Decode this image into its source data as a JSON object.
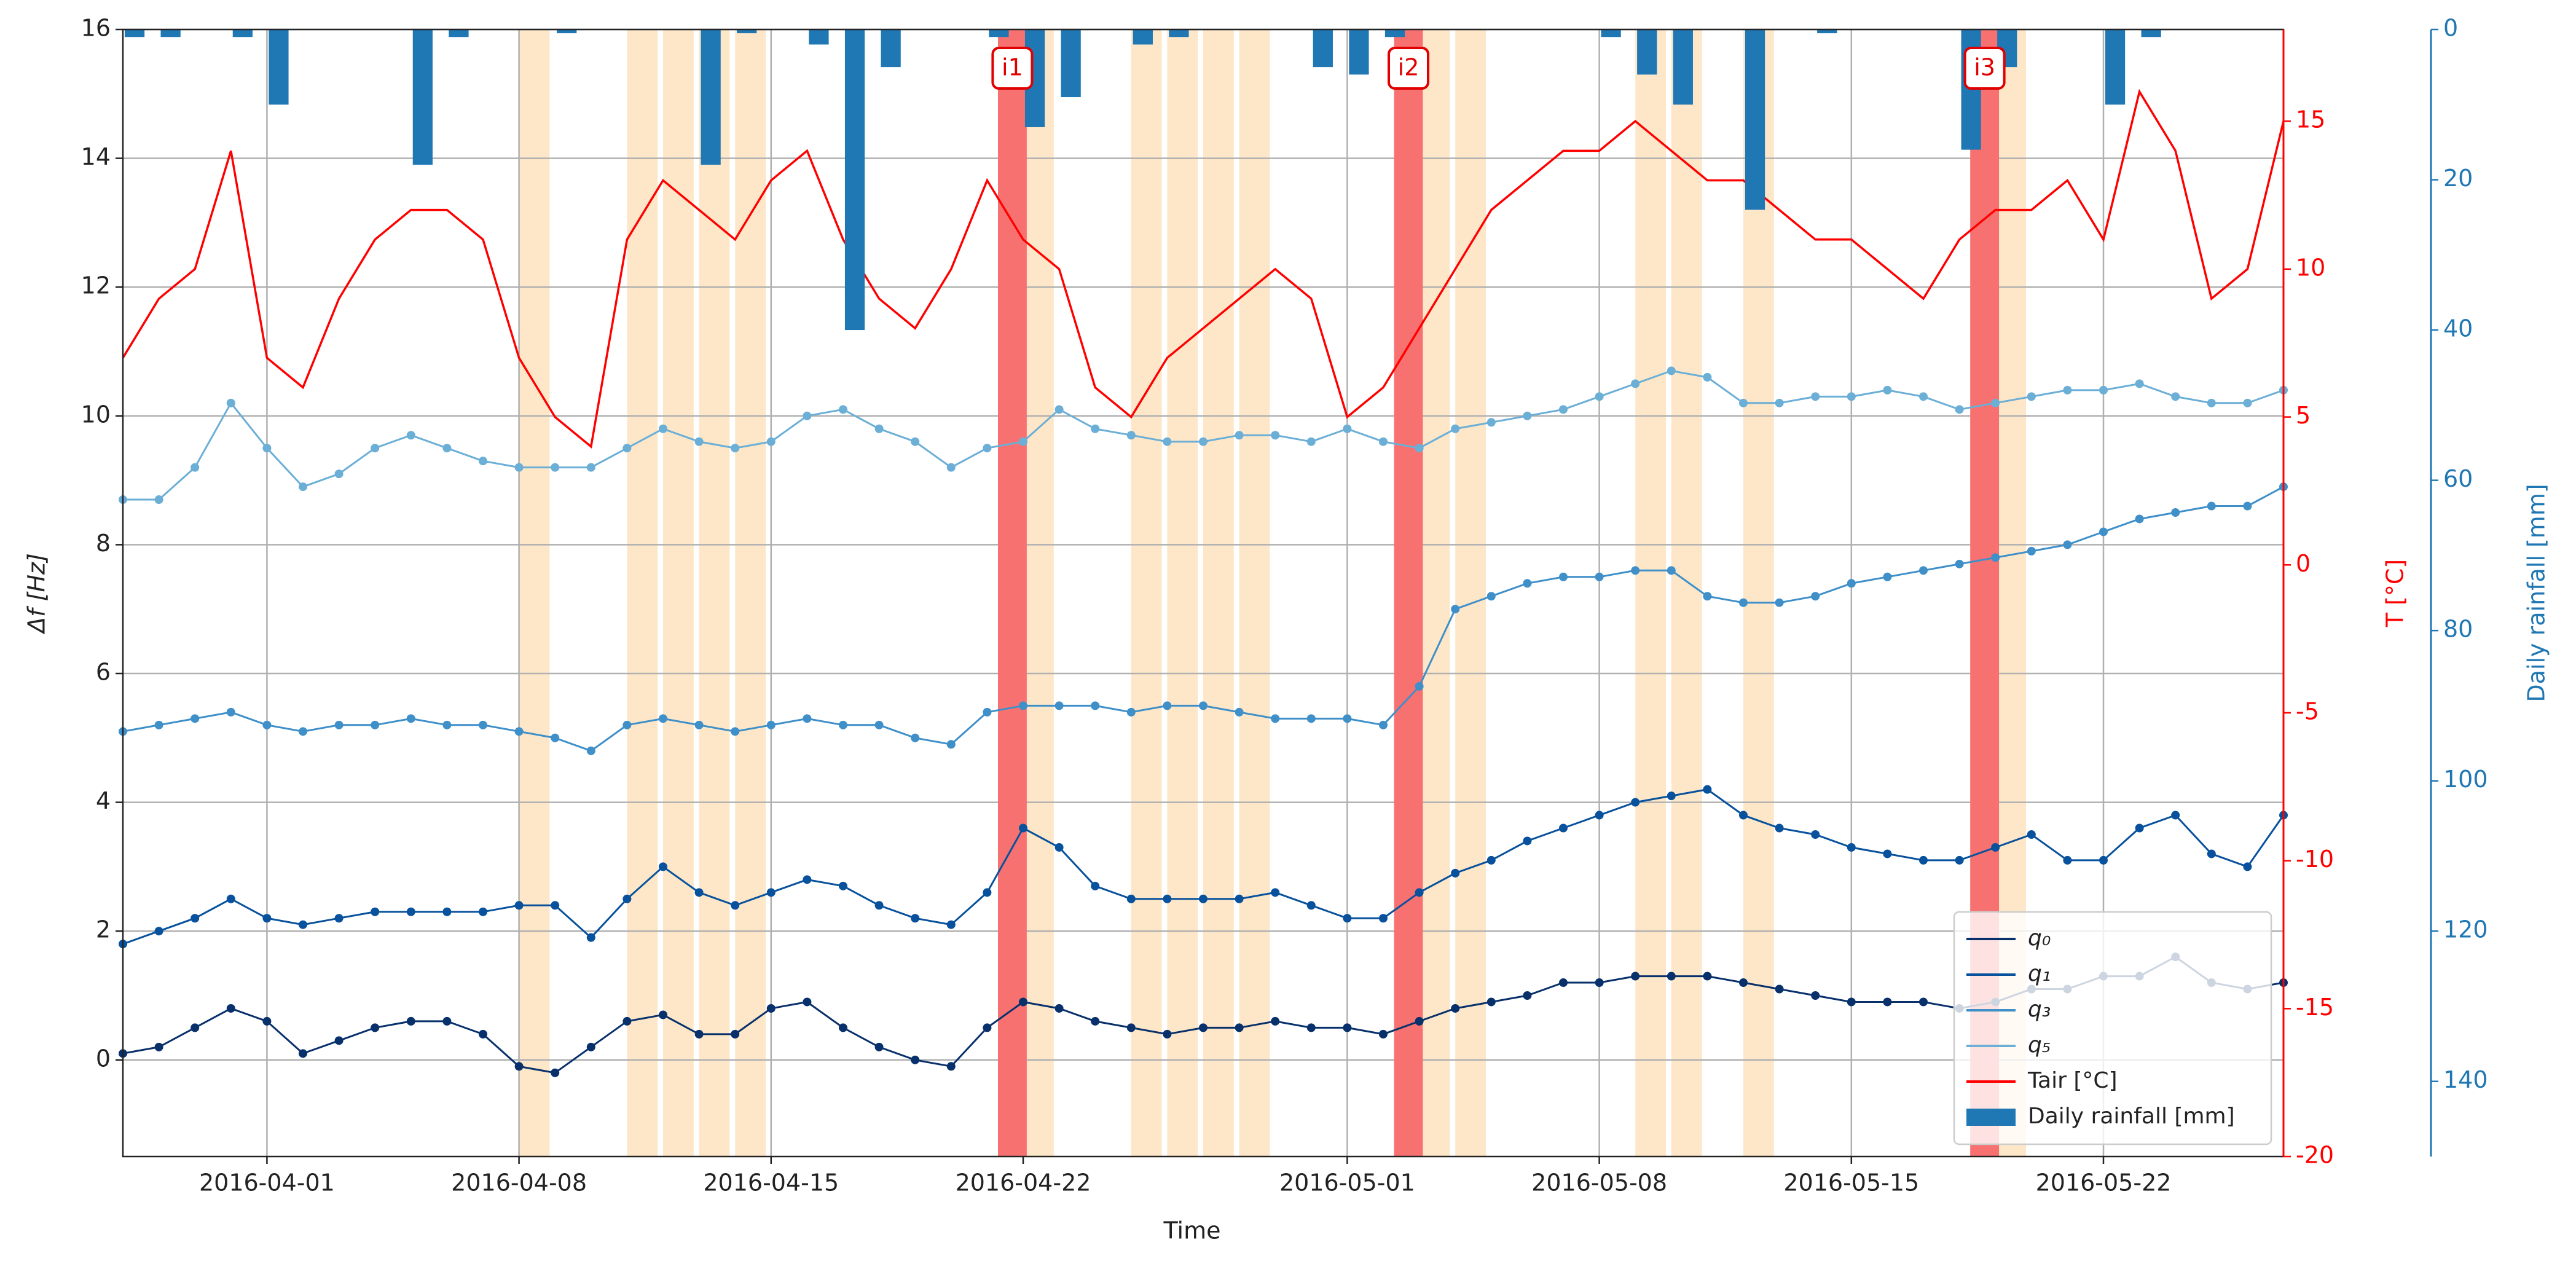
{
  "chart_data": {
    "type": "line",
    "xlabel": "Time",
    "ylabel": "Δf [Hz]",
    "y2label": "T [°C]",
    "y3label": "Daily rainfall [mm]",
    "x": [
      "2016-03-28",
      "2016-03-29",
      "2016-03-30",
      "2016-03-31",
      "2016-04-01",
      "2016-04-02",
      "2016-04-03",
      "2016-04-04",
      "2016-04-05",
      "2016-04-06",
      "2016-04-07",
      "2016-04-08",
      "2016-04-09",
      "2016-04-10",
      "2016-04-11",
      "2016-04-12",
      "2016-04-13",
      "2016-04-14",
      "2016-04-15",
      "2016-04-16",
      "2016-04-17",
      "2016-04-18",
      "2016-04-19",
      "2016-04-20",
      "2016-04-21",
      "2016-04-22",
      "2016-04-23",
      "2016-04-24",
      "2016-04-25",
      "2016-04-26",
      "2016-04-27",
      "2016-04-28",
      "2016-04-29",
      "2016-04-30",
      "2016-05-01",
      "2016-05-02",
      "2016-05-03",
      "2016-05-04",
      "2016-05-05",
      "2016-05-06",
      "2016-05-07",
      "2016-05-08",
      "2016-05-09",
      "2016-05-10",
      "2016-05-11",
      "2016-05-12",
      "2016-05-13",
      "2016-05-14",
      "2016-05-15",
      "2016-05-16",
      "2016-05-17",
      "2016-05-18",
      "2016-05-19",
      "2016-05-20",
      "2016-05-21",
      "2016-05-22",
      "2016-05-23",
      "2016-05-24",
      "2016-05-25",
      "2016-05-26",
      "2016-05-27"
    ],
    "xlim": [
      "2016-03-28",
      "2016-05-27"
    ],
    "xticks": [
      "2016-04-01",
      "2016-04-08",
      "2016-04-15",
      "2016-04-22",
      "2016-05-01",
      "2016-05-08",
      "2016-05-15",
      "2016-05-22"
    ],
    "ylim": [
      -1.5,
      16
    ],
    "yticks": [
      0,
      2,
      4,
      6,
      8,
      10,
      12,
      14,
      16
    ],
    "y2lim": [
      -20,
      18.1
    ],
    "y2ticks": [
      -20,
      -15,
      -10,
      -5,
      0,
      5,
      10,
      15
    ],
    "y3lim": [
      0,
      150
    ],
    "y3ticks": [
      0,
      20,
      40,
      60,
      80,
      100,
      120,
      140
    ],
    "y3_inverted": true,
    "grid": true,
    "legend": "lower right",
    "series": [
      {
        "name": "q₀",
        "color": "#08306b",
        "values": [
          0.1,
          0.2,
          0.5,
          0.8,
          0.6,
          0.1,
          0.3,
          0.5,
          0.6,
          0.6,
          0.4,
          -0.1,
          -0.2,
          0.2,
          0.6,
          0.7,
          0.4,
          0.4,
          0.8,
          0.9,
          0.5,
          0.2,
          0.0,
          -0.1,
          0.5,
          0.9,
          0.8,
          0.6,
          0.5,
          0.4,
          0.5,
          0.5,
          0.6,
          0.5,
          0.5,
          0.4,
          0.6,
          0.8,
          0.9,
          1.0,
          1.2,
          1.2,
          1.3,
          1.3,
          1.3,
          1.2,
          1.1,
          1.0,
          0.9,
          0.9,
          0.9,
          0.8,
          0.9,
          1.1,
          1.1,
          1.3,
          1.3,
          1.6,
          1.2,
          1.1,
          1.2
        ]
      },
      {
        "name": "q₁",
        "color": "#08519c",
        "values": [
          1.8,
          2.0,
          2.2,
          2.5,
          2.2,
          2.1,
          2.2,
          2.3,
          2.3,
          2.3,
          2.3,
          2.4,
          2.4,
          1.9,
          2.5,
          3.0,
          2.6,
          2.4,
          2.6,
          2.8,
          2.7,
          2.4,
          2.2,
          2.1,
          2.6,
          3.6,
          3.3,
          2.7,
          2.5,
          2.5,
          2.5,
          2.5,
          2.6,
          2.4,
          2.2,
          2.2,
          2.6,
          2.9,
          3.1,
          3.4,
          3.6,
          3.8,
          4.0,
          4.1,
          4.2,
          3.8,
          3.6,
          3.5,
          3.3,
          3.2,
          3.1,
          3.1,
          3.3,
          3.5,
          3.1,
          3.1,
          3.6,
          3.8,
          3.2,
          3.0,
          3.8
        ]
      },
      {
        "name": "q₃",
        "color": "#3f8fc9",
        "values": [
          5.1,
          5.2,
          5.3,
          5.4,
          5.2,
          5.1,
          5.2,
          5.2,
          5.3,
          5.2,
          5.2,
          5.1,
          5.0,
          4.8,
          5.2,
          5.3,
          5.2,
          5.1,
          5.2,
          5.3,
          5.2,
          5.2,
          5.0,
          4.9,
          5.4,
          5.5,
          5.5,
          5.5,
          5.4,
          5.5,
          5.5,
          5.4,
          5.3,
          5.3,
          5.3,
          5.2,
          5.8,
          7.0,
          7.2,
          7.4,
          7.5,
          7.5,
          7.6,
          7.6,
          7.2,
          7.1,
          7.1,
          7.2,
          7.4,
          7.5,
          7.6,
          7.7,
          7.8,
          7.9,
          8.0,
          8.2,
          8.4,
          8.5,
          8.6,
          8.6,
          8.9
        ]
      },
      {
        "name": "q₅",
        "color": "#6baed6",
        "values": [
          8.7,
          8.7,
          9.2,
          10.2,
          9.5,
          8.9,
          9.1,
          9.5,
          9.7,
          9.5,
          9.3,
          9.2,
          9.2,
          9.2,
          9.5,
          9.8,
          9.6,
          9.5,
          9.6,
          10.0,
          10.1,
          9.8,
          9.6,
          9.2,
          9.5,
          9.6,
          10.1,
          9.8,
          9.7,
          9.6,
          9.6,
          9.7,
          9.7,
          9.6,
          9.8,
          9.6,
          9.5,
          9.8,
          9.9,
          10.0,
          10.1,
          10.3,
          10.5,
          10.7,
          10.6,
          10.2,
          10.2,
          10.3,
          10.3,
          10.4,
          10.3,
          10.1,
          10.2,
          10.3,
          10.4,
          10.4,
          10.5,
          10.3,
          10.2,
          10.2,
          10.4
        ]
      },
      {
        "name": "Tair [°C]",
        "color": "#ff0000",
        "axis": "y2",
        "values": [
          7,
          9,
          10,
          14,
          7,
          6,
          9,
          11,
          12,
          12,
          11,
          7,
          5,
          4,
          11,
          13,
          12,
          11,
          13,
          14,
          11,
          9,
          8,
          10,
          13,
          11,
          10,
          6,
          5,
          7,
          8,
          9,
          10,
          9,
          5,
          6,
          8,
          10,
          12,
          13,
          14,
          14,
          15,
          14,
          13,
          13,
          12,
          11,
          11,
          10,
          9,
          11,
          12,
          12,
          13,
          11,
          16,
          14,
          9,
          10,
          15
        ]
      },
      {
        "name": "Daily rainfall [mm]",
        "color": "#1f77b4",
        "axis": "y3",
        "type": "bar",
        "values": [
          1,
          1,
          0,
          1,
          10,
          0,
          0,
          0,
          18,
          1,
          0,
          0,
          0.5,
          0,
          0,
          0,
          18,
          0.5,
          0,
          2,
          40,
          5,
          0,
          0,
          1,
          13,
          9,
          0,
          2,
          1,
          0,
          0,
          0,
          5,
          6,
          1,
          0,
          0,
          0,
          0,
          0,
          1,
          6,
          10,
          0,
          24,
          0,
          0.5,
          0,
          0,
          0,
          16,
          5,
          0,
          0,
          10,
          1,
          0,
          0,
          0,
          0
        ]
      }
    ],
    "events": [
      {
        "label": "i1",
        "x": "2016-04-21"
      },
      {
        "label": "i2",
        "x": "2016-05-02"
      },
      {
        "label": "i3",
        "x": "2016-05-18"
      }
    ],
    "event_color": "#f87171",
    "highlight_days": [
      "2016-04-08",
      "2016-04-11",
      "2016-04-12",
      "2016-04-13",
      "2016-04-14",
      "2016-04-22",
      "2016-04-25",
      "2016-04-26",
      "2016-04-27",
      "2016-04-28",
      "2016-05-03",
      "2016-05-04",
      "2016-05-09",
      "2016-05-10",
      "2016-05-12",
      "2016-05-19"
    ],
    "highlight_color": "#fde7c8"
  }
}
